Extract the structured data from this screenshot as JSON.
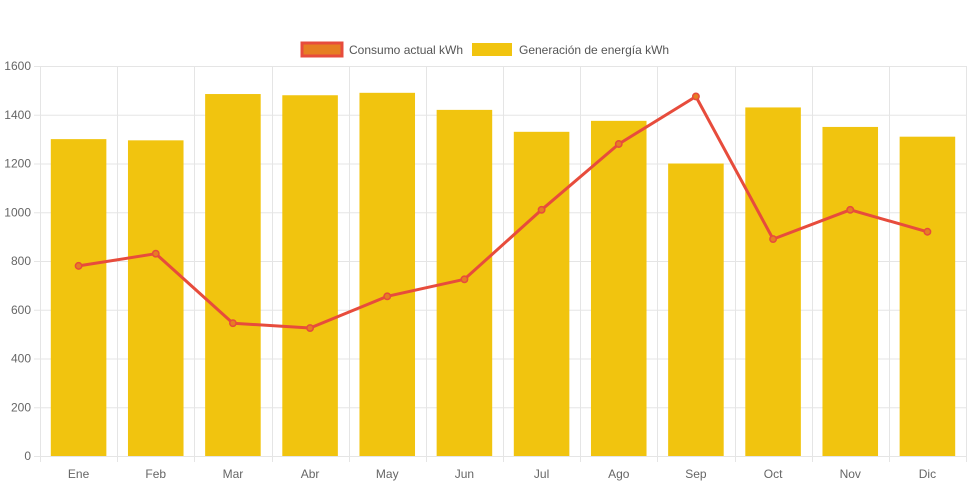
{
  "colors": {
    "bar_fill": "#f1c40f",
    "line_stroke": "#e74c3c",
    "point_fill": "#e67e22",
    "grid": "#e5e5e5"
  },
  "legend": {
    "line_label": "Consumo actual kWh",
    "bar_label": "Generación de energía kWh",
    "placement": "top-center"
  },
  "chart_data": {
    "type": "bar",
    "title": "",
    "xlabel": "",
    "ylabel": "",
    "ylim": [
      0,
      1600
    ],
    "yticks": [
      0,
      200,
      400,
      600,
      800,
      1000,
      1200,
      1400,
      1600
    ],
    "grid": true,
    "categories": [
      "Ene",
      "Feb",
      "Mar",
      "Abr",
      "May",
      "Jun",
      "Jul",
      "Ago",
      "Sep",
      "Oct",
      "Nov",
      "Dic"
    ],
    "series": [
      {
        "name": "Consumo actual kWh",
        "type": "line",
        "values": [
          780,
          830,
          545,
          525,
          655,
          725,
          1010,
          1280,
          1475,
          890,
          1010,
          920
        ]
      },
      {
        "name": "Generación de energía kWh",
        "type": "bar",
        "values": [
          1300,
          1295,
          1485,
          1480,
          1490,
          1420,
          1330,
          1375,
          1200,
          1430,
          1350,
          1310
        ]
      }
    ]
  }
}
